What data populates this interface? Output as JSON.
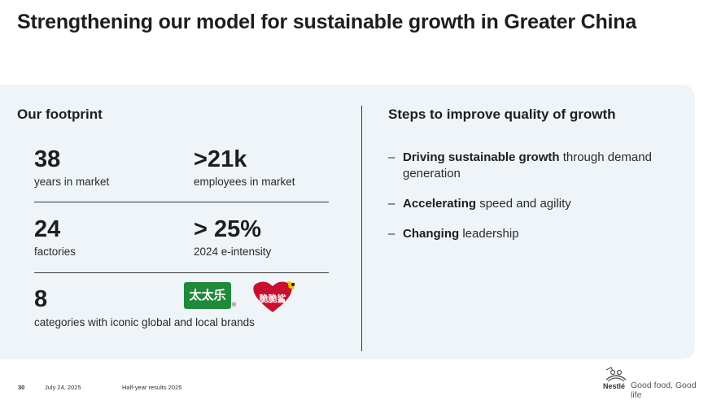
{
  "slide": {
    "title": "Strengthening our model for sustainable growth in Greater China"
  },
  "footprint": {
    "heading": "Our footprint",
    "stats": [
      {
        "value": "38",
        "label": "years in market"
      },
      {
        "value": ">21k",
        "label": "employees in market"
      },
      {
        "value": "24",
        "label": "factories"
      },
      {
        "value": "> 25%",
        "label": "2024 e-intensity"
      },
      {
        "value": "8",
        "label": "categories with iconic global and local brands"
      }
    ],
    "brand_logos": [
      {
        "name": "taitaile-logo",
        "text": "太太乐",
        "color": "#1f8a3a"
      },
      {
        "name": "nestle-cn-logo",
        "text": "脆脆鲨",
        "color": "#c8102e"
      }
    ]
  },
  "steps": {
    "heading": "Steps to improve quality of growth",
    "items": [
      {
        "bold": "Driving sustainable growth",
        "rest": " through demand generation"
      },
      {
        "bold": "Accelerating",
        "rest": " speed and agility"
      },
      {
        "bold": "Changing",
        "rest": " leadership"
      }
    ]
  },
  "footer": {
    "page_number": "30",
    "date": "July 24, 2025",
    "report": "Half-year results 2025",
    "brand": "Nestlé",
    "tagline": "Good food, Good life"
  },
  "colors": {
    "panel_background": "#eef4f8",
    "text_dark": "#1e1e1e",
    "brand_green": "#1f8a3a",
    "brand_red": "#c8102e"
  }
}
